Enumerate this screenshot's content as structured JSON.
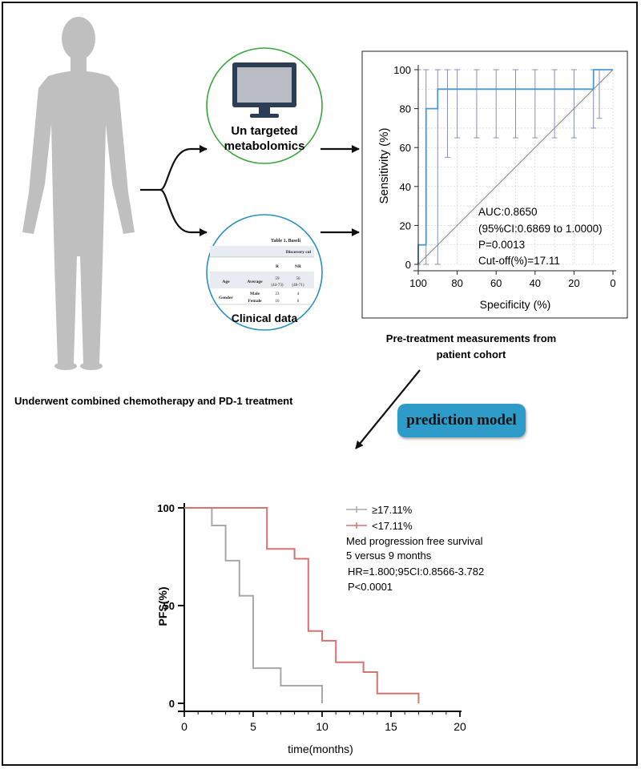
{
  "patient": {
    "caption": "Underwent combined chemotherapy and PD-1 treatment"
  },
  "metabolomics": {
    "label_line1": "Un targeted",
    "label_line2": "metabolomics",
    "circle_color": "#3aa63a",
    "icon": "monitor-icon"
  },
  "clinical": {
    "label": "Clinical data",
    "circle_color": "#2a8fc0",
    "table": {
      "title": "Table 1. Baseli",
      "group_header": "Discovery col",
      "col_R": "R",
      "col_NR": "NR",
      "rows": [
        {
          "group": "Age",
          "sub": "Average",
          "r": "59",
          "r2": "(44-73)",
          "nr": "56",
          "nr2": "(48-71)"
        },
        {
          "group": "Gender",
          "sub": "Male",
          "r": "23",
          "nr": "4"
        },
        {
          "group": "",
          "sub": "Female",
          "r": "16",
          "nr": "6"
        }
      ]
    }
  },
  "roc_caption": {
    "line1": "Pre-treatment measurements from",
    "line2": "patient cohort"
  },
  "model_label": "prediction model",
  "chart_data": [
    {
      "type": "line",
      "kind": "roc",
      "xlabel": "Specificity (%)",
      "ylabel": "Sensitivity (%)",
      "xlim": [
        100,
        0
      ],
      "ylim": [
        0,
        100
      ],
      "x_ticks": [
        100,
        80,
        60,
        40,
        20,
        0
      ],
      "y_ticks": [
        0,
        20,
        40,
        60,
        80,
        100
      ],
      "grid": true,
      "line_color": "#4a9ad0",
      "diagonal_color": "#888888",
      "ci_color": "#8a8fb8",
      "series": [
        {
          "specificity": [
            100,
            100,
            96,
            96,
            90,
            90,
            10,
            10,
            0
          ],
          "sensitivity": [
            0,
            10,
            10,
            80,
            80,
            90,
            90,
            100,
            100
          ]
        }
      ],
      "ci_bars": [
        {
          "x": 100,
          "lo": 0,
          "hi": 100
        },
        {
          "x": 96,
          "lo": 0,
          "hi": 100
        },
        {
          "x": 90,
          "lo": 0,
          "hi": 100
        },
        {
          "x": 85,
          "lo": 55,
          "hi": 100
        },
        {
          "x": 80,
          "lo": 65,
          "hi": 100
        },
        {
          "x": 70,
          "lo": 65,
          "hi": 100
        },
        {
          "x": 60,
          "lo": 65,
          "hi": 100
        },
        {
          "x": 50,
          "lo": 65,
          "hi": 100
        },
        {
          "x": 40,
          "lo": 65,
          "hi": 100
        },
        {
          "x": 30,
          "lo": 65,
          "hi": 100
        },
        {
          "x": 20,
          "lo": 65,
          "hi": 100
        },
        {
          "x": 10,
          "lo": 70,
          "hi": 100
        },
        {
          "x": 7,
          "lo": 75,
          "hi": 100
        }
      ],
      "annotations": [
        "AUC:0.8650",
        "(95%CI:0.6869 to 1.0000)",
        "P=0.0013",
        "Cut-off(%)=17.11"
      ]
    },
    {
      "type": "line",
      "kind": "kaplan-meier",
      "xlabel": "time(months)",
      "ylabel": "PFS(%)",
      "xlim": [
        0,
        20
      ],
      "ylim": [
        0,
        100
      ],
      "x_ticks": [
        0,
        5,
        10,
        15,
        20
      ],
      "y_ticks": [
        0,
        50,
        100
      ],
      "legend_position": "top-right",
      "series": [
        {
          "name": "≥17.11%",
          "color": "#a8a8a8",
          "time": [
            0,
            2,
            3,
            4,
            5,
            7,
            10
          ],
          "survival": [
            100,
            91,
            73,
            55,
            18,
            9,
            0
          ]
        },
        {
          "name": "<17.11%",
          "color": "#d9726e",
          "time": [
            0,
            6,
            8,
            9,
            10,
            11,
            13,
            14,
            17
          ],
          "survival": [
            100,
            79,
            74,
            37,
            32,
            21,
            16,
            5,
            0
          ]
        }
      ],
      "annotations": [
        "Med progression free survival",
        "5 versus 9 months",
        "HR=1.800;95CI:0.8566-3.782",
        "P<0.0001"
      ]
    }
  ]
}
